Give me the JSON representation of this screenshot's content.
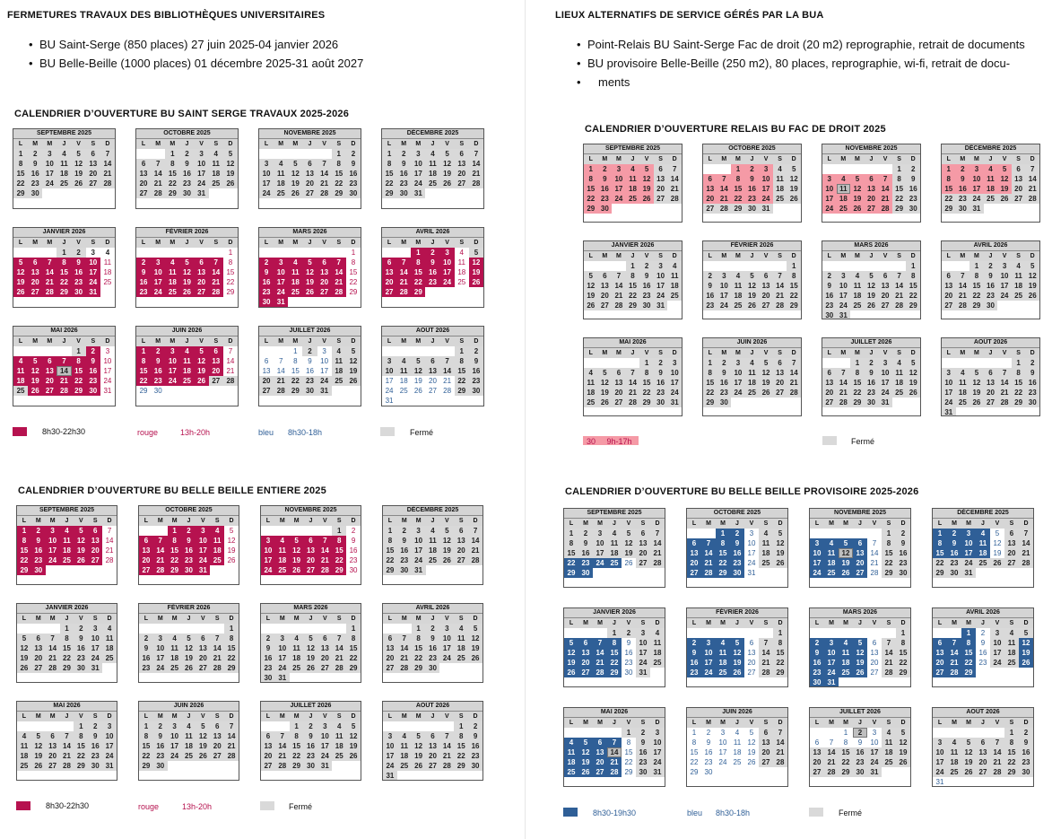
{
  "heading_left": "FERMETURES TRAVAUX DES BIBLIOTHÈQUES UNIVERSITAIRES",
  "heading_right": "LIEUX ALTERNATIFS DE SERVICE GÉRÉS PAR LA BUA",
  "bullets_left": [
    "BU Saint-Serge (850 places) 27 juin 2025-04 janvier 2026",
    "BU Belle-Beille (1000 places) 01 décembre 2025-31 août 2027"
  ],
  "bullets_right": [
    "Point-Relais BU Saint-Serge Fac de droit (20 m2) reprographie, retrait de documents",
    "BU provisoire Belle-Beille (250 m2), 80 places, reprographie, wi-fi, retrait de docu-",
    "ments"
  ],
  "day_headers": [
    "L",
    "M",
    "M",
    "J",
    "V",
    "S",
    "D"
  ],
  "legend_colors": {
    "wine": "#b6124f",
    "pink": "#f59aa6",
    "blue": "#2f5f97",
    "grey": "#d9d9d9"
  },
  "sections": [
    {
      "title": "CALENDRIER D’OUVERTURE BU SAINT SERGE TRAVAUX 2025-2026",
      "legend": {
        "wine_text": "8h30-22h30",
        "red_label": "rouge",
        "red_hours": "13h-20h",
        "blue_label": "bleu",
        "blue_hours": "8h30-18h",
        "grey_text": "Fermé"
      },
      "months": [
        {
          "name": "SEPTEMBRE 2025",
          "offset": 0,
          "rows": [
            "ggggggg",
            "ggggggg",
            "ggggggg",
            "ggggggg",
            "gg"
          ]
        },
        {
          "name": "OCTOBRE 2025",
          "offset": 2,
          "rows": [
            "ggggg",
            "ggggggg",
            "ggggggg",
            "ggggggg",
            "ggggg"
          ]
        },
        {
          "name": "NOVEMBRE 2025",
          "offset": 5,
          "rows": [
            "gg",
            "ggggggg",
            "ggggggg",
            "ggggggg",
            "ggggggg"
          ]
        },
        {
          "name": "DÉCEMBRE 2025",
          "offset": 0,
          "rows": [
            "ggggggg",
            "ggggggg",
            "ggggggg",
            "ggggggg",
            "ggg"
          ]
        },
        {
          "name": "JANVIER 2026",
          "offset": 3,
          "rows": [
            "ggww",
            "WWWWWWr",
            "WWWWWWr",
            "WWWWWWr",
            "WWWWWW"
          ]
        },
        {
          "name": "FÉVRIER 2026",
          "offset": 6,
          "rows": [
            "r",
            "WWWWWWr",
            "WWWWWWr",
            "WWWWWWr",
            "WWWWWWr"
          ]
        },
        {
          "name": "MARS 2026",
          "offset": 6,
          "rows": [
            "r",
            "WWWWWWr",
            "WWWWWWr",
            "WWWWWWr",
            "WWWWWWr",
            "WW"
          ]
        },
        {
          "name": "AVRIL 2026",
          "offset": 2,
          "rows": [
            "WWWr",
            "gWWWWWr",
            "WWWWWWr",
            "WWWWWWr",
            "WWWW"
          ]
        },
        {
          "name": "MAI 2026",
          "offset": 4,
          "rows": [
            "gWr",
            "WWWWWWr",
            "WWWsWWr",
            "WWWWWWr",
            "gWWWWWr"
          ]
        },
        {
          "name": "JUIN 2026",
          "offset": 0,
          "rows": [
            "WWWWWWr",
            "WWWWWWr",
            "WWWWWWr",
            "WWWWWgg",
            "bb"
          ]
        },
        {
          "name": "JUILLET 2026",
          "offset": 2,
          "rows": [
            "bgbgg",
            "bbbbbgg",
            "bbbbbgg",
            "ggggggg",
            "ggggg"
          ]
        },
        {
          "name": "AOÛT 2026",
          "offset": 5,
          "rows": [
            "gg",
            "ggggggg",
            "ggggggg",
            "bbbbbgg",
            "bbbbbgg",
            "b"
          ]
        }
      ]
    },
    {
      "title": "CALENDRIER D’OUVERTURE RELAIS BU FAC DE DROIT 2025",
      "legend": {
        "pink_text": "30     9h-17h",
        "grey_text": "Fermé"
      },
      "months": [
        {
          "name": "SEPTEMBRE 2025",
          "offset": 0,
          "rows": [
            "PPPPPgg",
            "PPPPPgg",
            "PPPPPgg",
            "PPPPPgg",
            "PP"
          ]
        },
        {
          "name": "OCTOBRE 2025",
          "offset": 2,
          "rows": [
            "PPPgg",
            "PPPPPgg",
            "PPPPPgg",
            "PPPPPgg",
            "ggggg"
          ]
        },
        {
          "name": "NOVEMBRE 2025",
          "offset": 5,
          "rows": [
            "gg",
            "PPPPPgg",
            "PsPPPgg",
            "PPPPPgg",
            "PPPPPgg"
          ]
        },
        {
          "name": "DÉCEMBRE 2025",
          "offset": 0,
          "rows": [
            "PPPPPgg",
            "PPPPPgg",
            "PPPPPgg",
            "ggggggg",
            "ggg"
          ]
        },
        {
          "name": "JANVIER 2026",
          "offset": 3,
          "rows": [
            "gggg",
            "ggggggg",
            "ggggggg",
            "ggggggg",
            "gggggg"
          ]
        },
        {
          "name": "FÉVRIER 2026",
          "offset": 6,
          "rows": [
            "g",
            "ggggggg",
            "ggggggg",
            "ggggggg",
            "ggggggg"
          ]
        },
        {
          "name": "MARS 2026",
          "offset": 6,
          "rows": [
            "g",
            "ggggggg",
            "ggggggg",
            "ggggggg",
            "ggggggg",
            "gg"
          ]
        },
        {
          "name": "AVRIL 2026",
          "offset": 2,
          "rows": [
            "ggggg",
            "ggggggg",
            "ggggggg",
            "ggggggg",
            "gggg"
          ]
        },
        {
          "name": "MAI 2026",
          "offset": 4,
          "rows": [
            "ggg",
            "ggggggg",
            "ggggggg",
            "ggggggg",
            "ggggggg"
          ]
        },
        {
          "name": "JUIN 2026",
          "offset": 0,
          "rows": [
            "ggggggg",
            "ggggggg",
            "ggggggg",
            "ggggggg",
            "gg"
          ]
        },
        {
          "name": "JUILLET 2026",
          "offset": 2,
          "rows": [
            "ggggg",
            "ggggggg",
            "ggggggg",
            "ggggggg",
            "ggggg"
          ]
        },
        {
          "name": "AOÛT 2026",
          "offset": 5,
          "rows": [
            "gg",
            "ggggggg",
            "ggggggg",
            "ggggggg",
            "ggggggg",
            "g"
          ]
        }
      ]
    },
    {
      "title": "CALENDRIER D’OUVERTURE BU BELLE BEILLE ENTIERE 2025",
      "legend": {
        "wine_text": "8h30-22h30",
        "red_label": "rouge",
        "red_hours": "13h-20h",
        "grey_text": "Fermé"
      },
      "months": [
        {
          "name": "SEPTEMBRE 2025",
          "offset": 0,
          "rows": [
            "WWWWWWr",
            "WWWWWWr",
            "WWWWWWr",
            "WWWWWWr",
            "WW"
          ]
        },
        {
          "name": "OCTOBRE 2025",
          "offset": 2,
          "rows": [
            "WWWWr",
            "WWWWWWr",
            "WWWWWWr",
            "WWWWWWr",
            "WWWWW"
          ]
        },
        {
          "name": "NOVEMBRE 2025",
          "offset": 5,
          "rows": [
            "gr",
            "WWWWWWr",
            "WWWWWWr",
            "WWWWWWr",
            "WWWWWWr"
          ]
        },
        {
          "name": "DÉCEMBRE 2025",
          "offset": 0,
          "rows": [
            "ggggggg",
            "ggggggg",
            "ggggggg",
            "ggggggg",
            "ggg"
          ]
        },
        {
          "name": "JANVIER 2026",
          "offset": 3,
          "rows": [
            "gggg",
            "ggggggg",
            "ggggggg",
            "ggggggg",
            "gggggg"
          ]
        },
        {
          "name": "FÉVRIER 2026",
          "offset": 6,
          "rows": [
            "g",
            "ggggggg",
            "ggggggg",
            "ggggggg",
            "ggggggg"
          ]
        },
        {
          "name": "MARS 2026",
          "offset": 6,
          "rows": [
            "g",
            "ggggggg",
            "ggggggg",
            "ggggggg",
            "ggggggg",
            "gg"
          ]
        },
        {
          "name": "AVRIL 2026",
          "offset": 2,
          "rows": [
            "ggggg",
            "ggggggg",
            "ggggggg",
            "ggggggg",
            "gggg"
          ]
        },
        {
          "name": "MAI 2026",
          "offset": 4,
          "rows": [
            "ggg",
            "ggggggg",
            "ggggggg",
            "ggggggg",
            "ggggggg"
          ]
        },
        {
          "name": "JUIN 2026",
          "offset": 0,
          "rows": [
            "ggggggg",
            "ggggggg",
            "ggggggg",
            "ggggggg",
            "gg"
          ]
        },
        {
          "name": "JUILLET 2026",
          "offset": 2,
          "rows": [
            "ggggg",
            "ggggggg",
            "ggggggg",
            "ggggggg",
            "ggggg"
          ]
        },
        {
          "name": "AOÛT 2026",
          "offset": 5,
          "rows": [
            "gg",
            "ggggggg",
            "ggggggg",
            "ggggggg",
            "ggggggg",
            "g"
          ]
        }
      ]
    },
    {
      "title": "CALENDRIER D’OUVERTURE BU BELLE BEILLE PROVISOIRE 2025-2026",
      "legend": {
        "blue_text": "8h30-19h30",
        "blue_label": "bleu",
        "blue_hours": "8h30-18h",
        "grey_text": "Fermé"
      },
      "months": [
        {
          "name": "SEPTEMBRE 2025",
          "offset": 0,
          "rows": [
            "ggggggg",
            "ggggggg",
            "ggggggg",
            "BBBBbgg",
            "BB"
          ]
        },
        {
          "name": "OCTOBRE 2025",
          "offset": 2,
          "rows": [
            "BBbgg",
            "BBBBbgg",
            "BBBBbgg",
            "BBBBbgg",
            "BBBBb"
          ]
        },
        {
          "name": "NOVEMBRE 2025",
          "offset": 5,
          "rows": [
            "gg",
            "BBBBbgg",
            "BBsBbgg",
            "BBBBbgg",
            "BBBBbgg"
          ]
        },
        {
          "name": "DÉCEMBRE 2025",
          "offset": 0,
          "rows": [
            "BBBBbgg",
            "BBBBbgg",
            "BBBBbgg",
            "ggggggg",
            "ggg"
          ]
        },
        {
          "name": "JANVIER 2026",
          "offset": 3,
          "rows": [
            "gggg",
            "BBBBbgg",
            "BBBBbgg",
            "BBBBbgg",
            "BBBBbg"
          ]
        },
        {
          "name": "FÉVRIER 2026",
          "offset": 6,
          "rows": [
            "g",
            "BBBBbgg",
            "BBBBbgg",
            "BBBBbgg",
            "BBBBbgg"
          ]
        },
        {
          "name": "MARS 2026",
          "offset": 6,
          "rows": [
            "g",
            "BBBBbgg",
            "BBBBbgg",
            "BBBBbgg",
            "BBBBbgg",
            "BB"
          ]
        },
        {
          "name": "AVRIL 2026",
          "offset": 2,
          "rows": [
            "Bbgg",
            "gBBBbgg",
            "BBBBbgg",
            "BBBBbgg",
            "BBBB"
          ]
        },
        {
          "name": "MAI 2026",
          "offset": 4,
          "rows": [
            "ggg",
            "BBBBbgg",
            "BBBsbgg",
            "BBBBbgg",
            "BBBBbgg"
          ]
        },
        {
          "name": "JUIN 2026",
          "offset": 0,
          "rows": [
            "bbbbbgg",
            "bbbbbgg",
            "bbbbbgg",
            "bbbbbgg",
            "bb"
          ]
        },
        {
          "name": "JUILLET 2026",
          "offset": 2,
          "rows": [
            "bsbgg",
            "bbbbbgg",
            "ggggggg",
            "ggggggg",
            "ggggg"
          ]
        },
        {
          "name": "AOÛT 2026",
          "offset": 5,
          "rows": [
            "gg",
            "ggggggg",
            "ggggggg",
            "ggggggg",
            "ggggggg",
            "b"
          ]
        }
      ]
    }
  ]
}
